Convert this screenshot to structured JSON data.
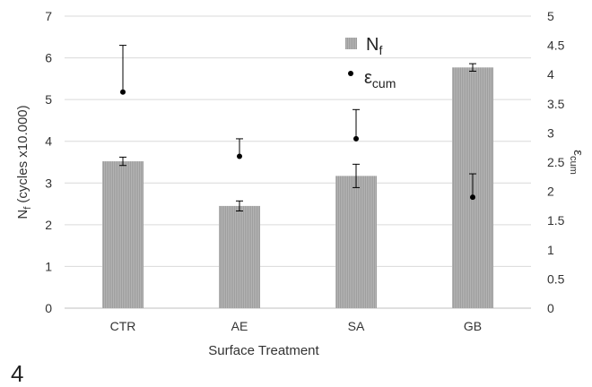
{
  "figure_number": "4",
  "chart_data": {
    "type": "bar",
    "categories": [
      "CTR",
      "AE",
      "SA",
      "GB"
    ],
    "xlabel": "Surface Treatment",
    "ylabel": {
      "base": "N",
      "sub": "f",
      "suffix": " (cycles x10.000)"
    },
    "ylabel_right": {
      "base": "ε",
      "sub": "cum"
    },
    "ylim": [
      0,
      7
    ],
    "yticks": [
      "0",
      "1",
      "2",
      "3",
      "4",
      "5",
      "6",
      "7"
    ],
    "y2lim": [
      0,
      5
    ],
    "y2ticks": [
      "0",
      "0.5",
      "1",
      "1.5",
      "2",
      "2.5",
      "3",
      "3.5",
      "4",
      "4.5",
      "5"
    ],
    "grid": true,
    "legend_position": "top-right",
    "colors": {
      "bar": "#9e9e9e",
      "bar_stripe": "#b4b4b4",
      "point": "#000000",
      "grid": "#d9d9d9",
      "axis": "#bfbfbf"
    },
    "series": [
      {
        "name": {
          "base": "N",
          "sub": "f"
        },
        "kind": "bar",
        "axis": "left",
        "values": [
          3.52,
          2.45,
          3.17,
          5.77
        ],
        "errors": [
          0.1,
          0.12,
          0.28,
          0.09
        ]
      },
      {
        "name": {
          "base": "ε",
          "sub": "cum"
        },
        "kind": "point",
        "axis": "right",
        "values": [
          3.7,
          2.6,
          2.9,
          1.9
        ],
        "errors_upper": [
          0.8,
          0.3,
          0.5,
          0.4
        ]
      }
    ]
  }
}
